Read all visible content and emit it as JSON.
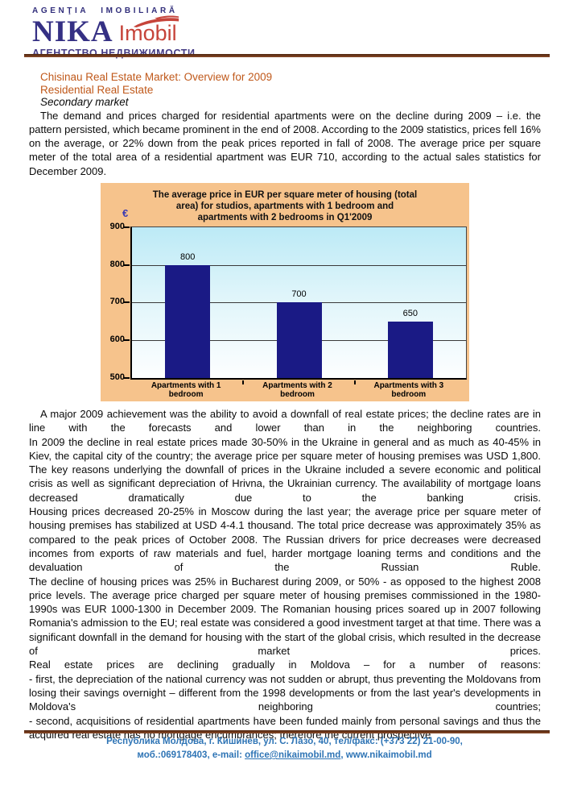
{
  "header": {
    "tagline": "AGENŢIA IMOBILIARĂ",
    "brand_name": "NIKA",
    "brand_suffix": "Imobil",
    "subtitle_ru": "АГЕНТСТВО НЕДВИЖИМОСТИ"
  },
  "article": {
    "title": "Chisinau Real Estate Market: Overview for 2009",
    "subtitle": "Residential Real Estate",
    "section_heading": "Secondary market",
    "intro_paragraph": "The demand and prices charged for residential apartments were on the decline during 2009 – i.e. the pattern persisted, which became prominent in the end of 2008. According to the 2009 statistics, prices fell 16% on the average, or 22% down from the peak prices reported in fall of 2008. The average price per square meter of the total area of a residential apartment was EUR 710, according to the actual sales statistics for December 2009.",
    "body_blocks": [
      {
        "text": "A major 2009 achievement was the ability to avoid a downfall of real estate prices; the decline rates are in line with the forecasts and lower than in the neighboring countries."
      },
      {
        "text": "In 2009 the decline in real estate prices made 30-50% in the Ukraine in general and as much as 40-45% in Kiev, the capital city of the country; the average price per square meter of housing premises was USD 1,800. The key reasons underlying the downfall of prices in the Ukraine included a severe economic and political crisis as well as significant depreciation of Hrivna, the Ukrainian currency. The availability of mortgage loans decreased dramatically due to the banking crisis."
      },
      {
        "text": "Housing prices decreased 20-25% in Moscow during the last year; the average price per square meter of housing premises has stabilized at USD 4-4.1 thousand. The total price decrease was approximately 35% as compared to the peak prices of October 2008. The Russian drivers for price decreases were decreased incomes from exports of raw materials and fuel, harder mortgage loaning terms and conditions and the devaluation of the Russian Ruble."
      },
      {
        "text": "The decline of housing prices was 25% in Bucharest during 2009, or 50% - as opposed to the highest 2008 price levels. The average price charged per square meter of housing premises commissioned in the 1980-1990s was EUR 1000-1300 in December 2009. The Romanian housing prices soared up in 2007 following Romania's admission to the EU; real estate was considered a good investment target at that time. There was a significant downfall in the demand for housing with the start of the global crisis, which resulted in the decrease of market prices."
      },
      {
        "text": "Real estate prices are declining gradually in Moldova – for a number of reasons:"
      },
      {
        "text": "- first, the depreciation of the national currency was not sudden or abrupt, thus preventing the Moldovans from losing their savings overnight – different from the 1998 developments or from the last year's developments in Moldova's neighboring countries;"
      },
      {
        "text": "- second, acquisitions of residential apartments have been funded mainly from personal savings and thus the acquired real estate has no mortgage encumbrances; therefore the current prospective"
      }
    ]
  },
  "chart_data": {
    "type": "bar",
    "title": "The average price in EUR per square meter of housing (total area) for studios, apartments with 1 bedroom and apartments with 2 bedrooms in Q1'2009",
    "currency_axis_label": "€",
    "categories": [
      "Apartments with 1 bedroom",
      "Apartments with 2 bedroom",
      "Apartments with 3 bedroom"
    ],
    "values": [
      800,
      700,
      650
    ],
    "yticks": [
      500,
      600,
      700,
      800,
      900
    ],
    "ylim": [
      500,
      900
    ],
    "grid": true,
    "legend": false,
    "colors": {
      "bar": "#1A1A85",
      "chart_background": "#F6C38C",
      "plot_background_top": "#BCEAF6",
      "plot_background_bottom": "#FDFEFF"
    }
  },
  "footer": {
    "address_line": "Республика Молдова, г. Кишинев, ул. С. Лазо, 40, тел/факс: (+373 22) 21-00-90,",
    "contacts_prefix": "моб.:069178403, e-mail: ",
    "email": "office@nikaimobil.md",
    "contacts_suffix": ", www.nikaimobil.md"
  }
}
